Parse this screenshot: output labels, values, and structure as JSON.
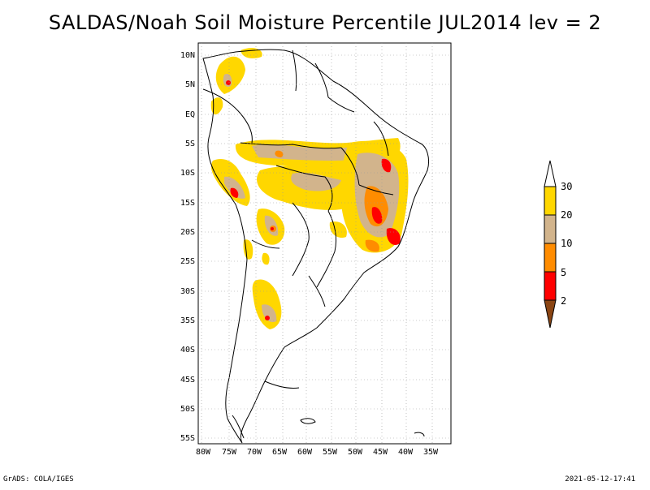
{
  "title": "SALDAS/Noah Soil Moisture Percentile JUL2014 lev = 2",
  "footer": {
    "left": "GrADS: COLA/IGES",
    "right": "2021-05-12-17:41"
  },
  "map": {
    "lat_ticks": [
      "10N",
      "5N",
      "EQ",
      "5S",
      "10S",
      "15S",
      "20S",
      "25S",
      "30S",
      "35S",
      "40S",
      "45S",
      "50S",
      "55S"
    ],
    "lon_ticks": [
      "80W",
      "75W",
      "70W",
      "65W",
      "60W",
      "55W",
      "50W",
      "45W",
      "40W",
      "35W"
    ],
    "extent": {
      "lon_min": -80,
      "lon_max": -34,
      "lat_min": -56,
      "lat_max": 12
    }
  },
  "colorbar": {
    "labels": [
      "30",
      "20",
      "10",
      "5",
      "2"
    ],
    "colors": {
      "gt30": "#ffffff",
      "c20_30": "#ffd700",
      "c10_20": "#d2b48c",
      "c5_10": "#ff8c00",
      "c2_5": "#ff0000",
      "lt2": "#8b4513"
    }
  },
  "colors": {
    "land_outline": "#000000",
    "grid": "#999999"
  }
}
